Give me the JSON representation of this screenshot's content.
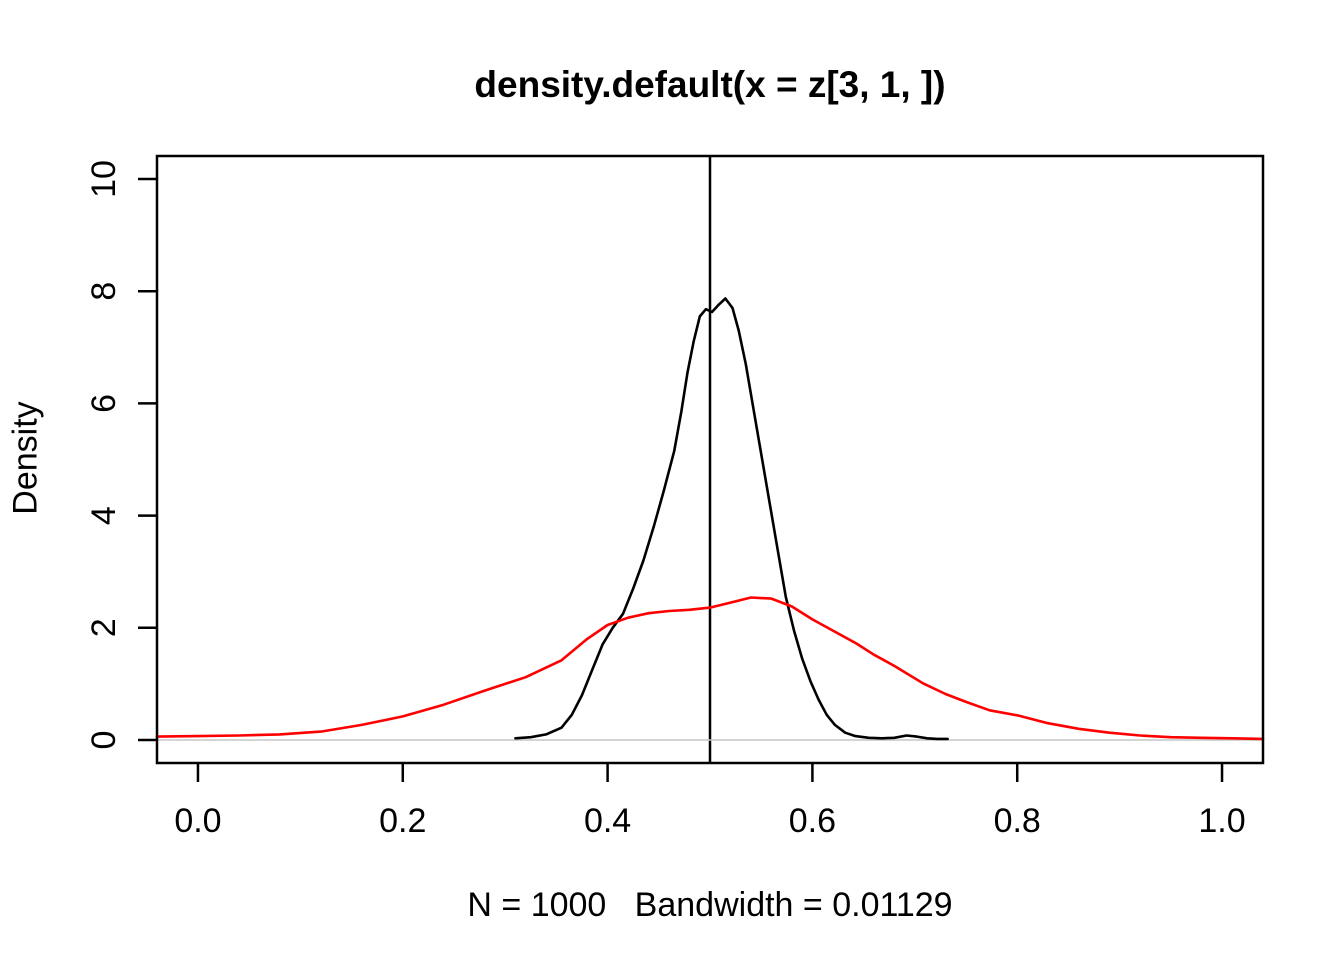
{
  "chart_data": {
    "type": "line",
    "title": "density.default(x = z[3, 1, ])",
    "x_axis": {
      "subtitle": "N = 1000   Bandwidth = 0.01129",
      "range": [
        -0.04,
        1.04
      ],
      "ticks": [
        0.0,
        0.2,
        0.4,
        0.6,
        0.8,
        1.0
      ],
      "tick_labels": [
        "0.0",
        "0.2",
        "0.4",
        "0.6",
        "0.8",
        "1.0"
      ]
    },
    "y_axis": {
      "label": "Density",
      "range": [
        -0.41,
        10.41
      ],
      "ticks": [
        0,
        2,
        4,
        6,
        8,
        10
      ],
      "tick_labels": [
        "0",
        "2",
        "4",
        "6",
        "8",
        "10"
      ]
    },
    "grid": "off",
    "legend": "none",
    "reference_lines": [
      {
        "orientation": "vertical",
        "x": 0.5,
        "color": "#000000"
      },
      {
        "orientation": "horizontal",
        "y": 0,
        "color": "#c6c6c6"
      }
    ],
    "series": [
      {
        "name": "black_density_curve",
        "color": "#000000",
        "points": [
          [
            0.31,
            0.03
          ],
          [
            0.325,
            0.05
          ],
          [
            0.34,
            0.1
          ],
          [
            0.355,
            0.22
          ],
          [
            0.365,
            0.45
          ],
          [
            0.375,
            0.8
          ],
          [
            0.385,
            1.25
          ],
          [
            0.395,
            1.7
          ],
          [
            0.405,
            2.0
          ],
          [
            0.415,
            2.25
          ],
          [
            0.425,
            2.7
          ],
          [
            0.435,
            3.2
          ],
          [
            0.445,
            3.8
          ],
          [
            0.455,
            4.45
          ],
          [
            0.465,
            5.15
          ],
          [
            0.472,
            5.85
          ],
          [
            0.478,
            6.55
          ],
          [
            0.484,
            7.1
          ],
          [
            0.49,
            7.55
          ],
          [
            0.496,
            7.68
          ],
          [
            0.502,
            7.63
          ],
          [
            0.508,
            7.75
          ],
          [
            0.515,
            7.87
          ],
          [
            0.522,
            7.7
          ],
          [
            0.528,
            7.3
          ],
          [
            0.535,
            6.7
          ],
          [
            0.542,
            5.95
          ],
          [
            0.55,
            5.1
          ],
          [
            0.558,
            4.25
          ],
          [
            0.566,
            3.4
          ],
          [
            0.574,
            2.55
          ],
          [
            0.582,
            1.95
          ],
          [
            0.59,
            1.45
          ],
          [
            0.598,
            1.05
          ],
          [
            0.606,
            0.72
          ],
          [
            0.614,
            0.45
          ],
          [
            0.622,
            0.27
          ],
          [
            0.632,
            0.13
          ],
          [
            0.642,
            0.07
          ],
          [
            0.655,
            0.04
          ],
          [
            0.668,
            0.03
          ],
          [
            0.68,
            0.04
          ],
          [
            0.692,
            0.08
          ],
          [
            0.702,
            0.06
          ],
          [
            0.712,
            0.03
          ],
          [
            0.722,
            0.02
          ],
          [
            0.732,
            0.02
          ]
        ]
      },
      {
        "name": "red_density_curve",
        "color": "#ff0000",
        "points": [
          [
            -0.04,
            0.06
          ],
          [
            0.0,
            0.07
          ],
          [
            0.04,
            0.08
          ],
          [
            0.08,
            0.1
          ],
          [
            0.12,
            0.15
          ],
          [
            0.16,
            0.27
          ],
          [
            0.2,
            0.42
          ],
          [
            0.24,
            0.63
          ],
          [
            0.28,
            0.88
          ],
          [
            0.32,
            1.12
          ],
          [
            0.355,
            1.42
          ],
          [
            0.38,
            1.8
          ],
          [
            0.4,
            2.05
          ],
          [
            0.42,
            2.18
          ],
          [
            0.44,
            2.26
          ],
          [
            0.46,
            2.3
          ],
          [
            0.48,
            2.32
          ],
          [
            0.5,
            2.36
          ],
          [
            0.52,
            2.45
          ],
          [
            0.54,
            2.54
          ],
          [
            0.56,
            2.52
          ],
          [
            0.58,
            2.38
          ],
          [
            0.6,
            2.15
          ],
          [
            0.62,
            1.95
          ],
          [
            0.643,
            1.72
          ],
          [
            0.66,
            1.52
          ],
          [
            0.68,
            1.32
          ],
          [
            0.708,
            1.01
          ],
          [
            0.73,
            0.82
          ],
          [
            0.75,
            0.68
          ],
          [
            0.773,
            0.53
          ],
          [
            0.8,
            0.44
          ],
          [
            0.83,
            0.3
          ],
          [
            0.86,
            0.2
          ],
          [
            0.89,
            0.13
          ],
          [
            0.92,
            0.08
          ],
          [
            0.95,
            0.05
          ],
          [
            0.98,
            0.04
          ],
          [
            1.01,
            0.03
          ],
          [
            1.04,
            0.02
          ]
        ]
      }
    ]
  },
  "colors": {
    "foreground": "#000000",
    "accent_red": "#ff0000",
    "baseline_gray": "#c6c6c6",
    "background": "#ffffff"
  }
}
